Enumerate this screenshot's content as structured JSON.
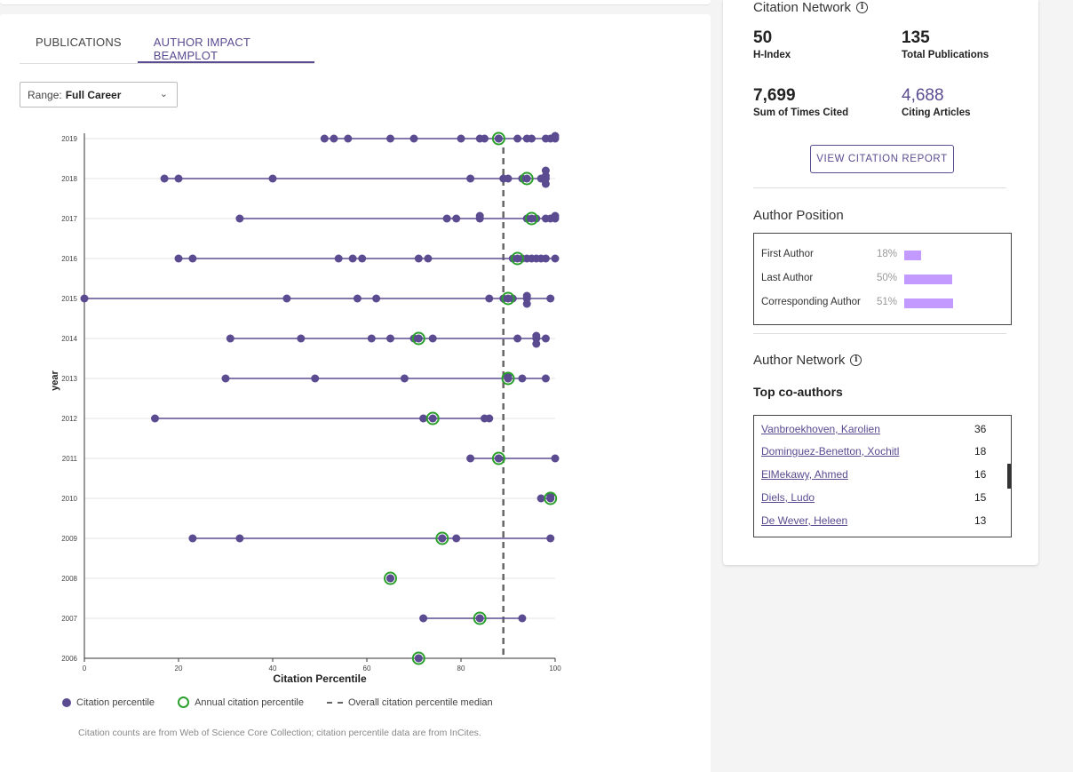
{
  "tabs": [
    {
      "label": "PUBLICATIONS",
      "active": false
    },
    {
      "label": "AUTHOR IMPACT BEAMPLOT",
      "active": true
    }
  ],
  "range": {
    "label": "Range:",
    "value": "Full Career"
  },
  "chart_data": {
    "type": "scatter",
    "title": "",
    "xlabel": "Citation Percentile",
    "ylabel": "year",
    "xlim": [
      0,
      100
    ],
    "xticks": [
      0,
      20,
      40,
      60,
      80,
      100
    ],
    "median": 89,
    "years": [
      {
        "year": "2019",
        "points": [
          51,
          53,
          56,
          65,
          70,
          80,
          84,
          85,
          88,
          92,
          94,
          95,
          98,
          99,
          100,
          100
        ],
        "annual": 88
      },
      {
        "year": "2018",
        "points": [
          17,
          20,
          40,
          82,
          89,
          90,
          93,
          97,
          98,
          98,
          98,
          98
        ],
        "annual": 94
      },
      {
        "year": "2017",
        "points": [
          33,
          77,
          79,
          84,
          84,
          94,
          96,
          98,
          99,
          100,
          100
        ],
        "annual": 95
      },
      {
        "year": "2016",
        "points": [
          20,
          23,
          54,
          57,
          59,
          71,
          73,
          91,
          93,
          94,
          95,
          96,
          97,
          98,
          100
        ],
        "annual": 92
      },
      {
        "year": "2015",
        "points": [
          0,
          43,
          58,
          62,
          86,
          89,
          91,
          94,
          94,
          94,
          99
        ],
        "annual": 90
      },
      {
        "year": "2014",
        "points": [
          31,
          46,
          61,
          65,
          70,
          71,
          74,
          92,
          96,
          96,
          96,
          98
        ],
        "annual": 71
      },
      {
        "year": "2013",
        "points": [
          30,
          49,
          68,
          90,
          90,
          93,
          98
        ],
        "annual": 90
      },
      {
        "year": "2012",
        "points": [
          15,
          72,
          85,
          86
        ],
        "annual": 74
      },
      {
        "year": "2011",
        "points": [
          82,
          88,
          100
        ],
        "annual": 88
      },
      {
        "year": "2010",
        "points": [
          97,
          99,
          99
        ],
        "annual": 99
      },
      {
        "year": "2009",
        "points": [
          23,
          33,
          76,
          79,
          99
        ],
        "annual": 76
      },
      {
        "year": "2008",
        "points": [
          65
        ],
        "annual": 65
      },
      {
        "year": "2007",
        "points": [
          72,
          84,
          93
        ],
        "annual": 84
      },
      {
        "year": "2006",
        "points": [
          71
        ],
        "annual": 71
      }
    ],
    "colors": {
      "point": "#5b4b91",
      "annual": "#2ca02c",
      "median": "#666666",
      "beam": "#5b4b91"
    }
  },
  "legend": {
    "citation": "Citation percentile",
    "annual": "Annual citation percentile",
    "median": "Overall citation percentile median"
  },
  "footnote": "Citation counts are from Web of Science Core Collection; citation percentile data are from InCites.",
  "network": {
    "title": "Citation Network",
    "metrics": [
      {
        "value": "50",
        "label": "H-Index"
      },
      {
        "value": "135",
        "label": "Total Publications"
      },
      {
        "value": "7,699",
        "label": "Sum of Times Cited"
      },
      {
        "value": "4,688",
        "label": "Citing Articles"
      }
    ],
    "report_button": "VIEW CITATION REPORT"
  },
  "position": {
    "title": "Author Position",
    "rows": [
      {
        "label": "First Author",
        "pct": "18%",
        "value": 18
      },
      {
        "label": "Last Author",
        "pct": "50%",
        "value": 50
      },
      {
        "label": "Corresponding Author",
        "pct": "51%",
        "value": 51
      }
    ]
  },
  "author_network": {
    "title": "Author Network",
    "subtitle": "Top co-authors",
    "coauthors": [
      {
        "name": "Vanbroekhoven, Karolien",
        "count": "36"
      },
      {
        "name": "Dominguez-Benetton, Xochitl",
        "count": "18"
      },
      {
        "name": "ElMekawy, Ahmed",
        "count": "16"
      },
      {
        "name": "Diels, Ludo",
        "count": "15"
      },
      {
        "name": "De Wever, Heleen",
        "count": "13"
      }
    ]
  },
  "colors": {
    "accent": "#5b4b91",
    "bar": "#c39aff",
    "ring": "#2ca02c"
  }
}
